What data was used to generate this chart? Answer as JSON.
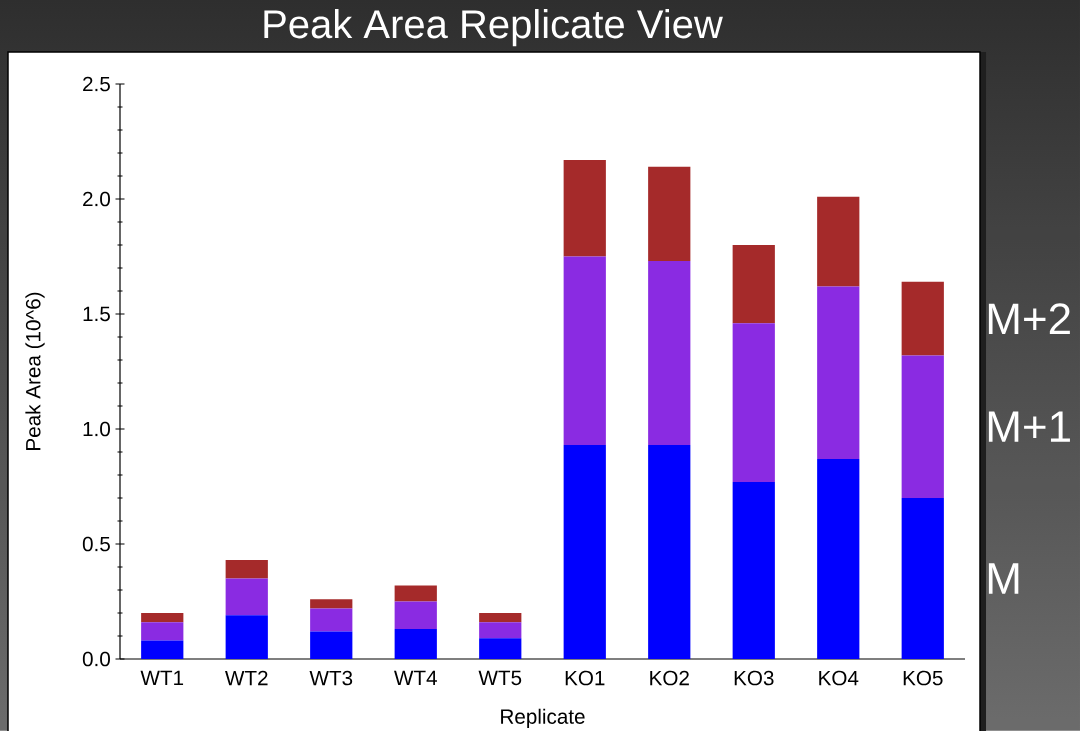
{
  "chart_data": {
    "type": "bar",
    "stacked": true,
    "title": "Peak Area Replicate View",
    "xlabel": "Replicate",
    "ylabel": "Peak Area (10^6)",
    "categories": [
      "WT1",
      "WT2",
      "WT3",
      "WT4",
      "WT5",
      "KO1",
      "KO2",
      "KO3",
      "KO4",
      "KO5"
    ],
    "series": [
      {
        "name": "M",
        "color": "#0000ff",
        "values": [
          0.08,
          0.19,
          0.12,
          0.13,
          0.09,
          0.93,
          0.93,
          0.77,
          0.87,
          0.7
        ]
      },
      {
        "name": "M+1",
        "color": "#8a2be2",
        "values": [
          0.08,
          0.16,
          0.1,
          0.12,
          0.07,
          0.82,
          0.8,
          0.69,
          0.75,
          0.62
        ]
      },
      {
        "name": "M+2",
        "color": "#a52a2a",
        "values": [
          0.04,
          0.08,
          0.04,
          0.07,
          0.04,
          0.42,
          0.41,
          0.34,
          0.39,
          0.32
        ]
      }
    ],
    "ylim": [
      0,
      2.5
    ],
    "yticks": [
      {
        "value": 0,
        "label": "0.0"
      },
      {
        "value": 0.1,
        "label": null
      },
      {
        "value": 0.2,
        "label": null
      },
      {
        "value": 0.3,
        "label": null
      },
      {
        "value": 0.4,
        "label": null
      },
      0.5,
      {
        "value": 0.6,
        "label": null
      },
      {
        "value": 0.7,
        "label": null
      },
      {
        "value": 0.8,
        "label": null
      },
      {
        "value": 0.9,
        "label": null
      },
      {
        "value": 1.0,
        "label": "1.0"
      },
      {
        "value": 1.1,
        "label": null
      },
      {
        "value": 1.2,
        "label": null
      },
      {
        "value": 1.3,
        "label": null
      },
      {
        "value": 1.4,
        "label": null
      },
      1.5,
      {
        "value": 1.6,
        "label": null
      },
      {
        "value": 1.7,
        "label": null
      },
      {
        "value": 1.8,
        "label": null
      },
      {
        "value": 1.9,
        "label": null
      },
      {
        "value": 2.0,
        "label": "2.0"
      },
      {
        "value": 2.1,
        "label": null
      },
      {
        "value": 2.2,
        "label": null
      },
      {
        "value": 2.3,
        "label": null
      },
      {
        "value": 2.4,
        "label": null
      },
      2.5
    ]
  }
}
